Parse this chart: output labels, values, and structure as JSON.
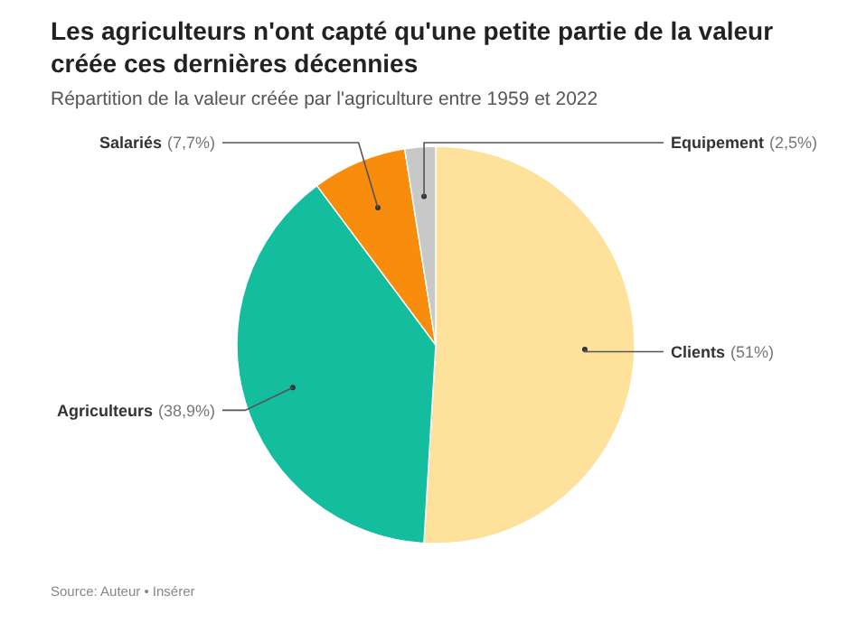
{
  "chart_data": {
    "type": "pie",
    "title": "Les agriculteurs n'ont capté qu'une petite partie de la valeur créée ces dernières décennies",
    "subtitle": "Répartition de la valeur créée par l'agriculture entre 1959 et 2022",
    "categories": [
      "Clients",
      "Agriculteurs",
      "Salariés",
      "Equipement"
    ],
    "values": [
      51,
      38.9,
      7.7,
      2.5
    ],
    "value_labels": [
      "(51%)",
      "(38,9%)",
      "(7,7%)",
      "(2,5%)"
    ],
    "colors": [
      "#fee29b",
      "#14bd9e",
      "#f88c0c",
      "#c8c8c8"
    ],
    "annotations": [
      "Source: Auteur • Insérer"
    ]
  }
}
